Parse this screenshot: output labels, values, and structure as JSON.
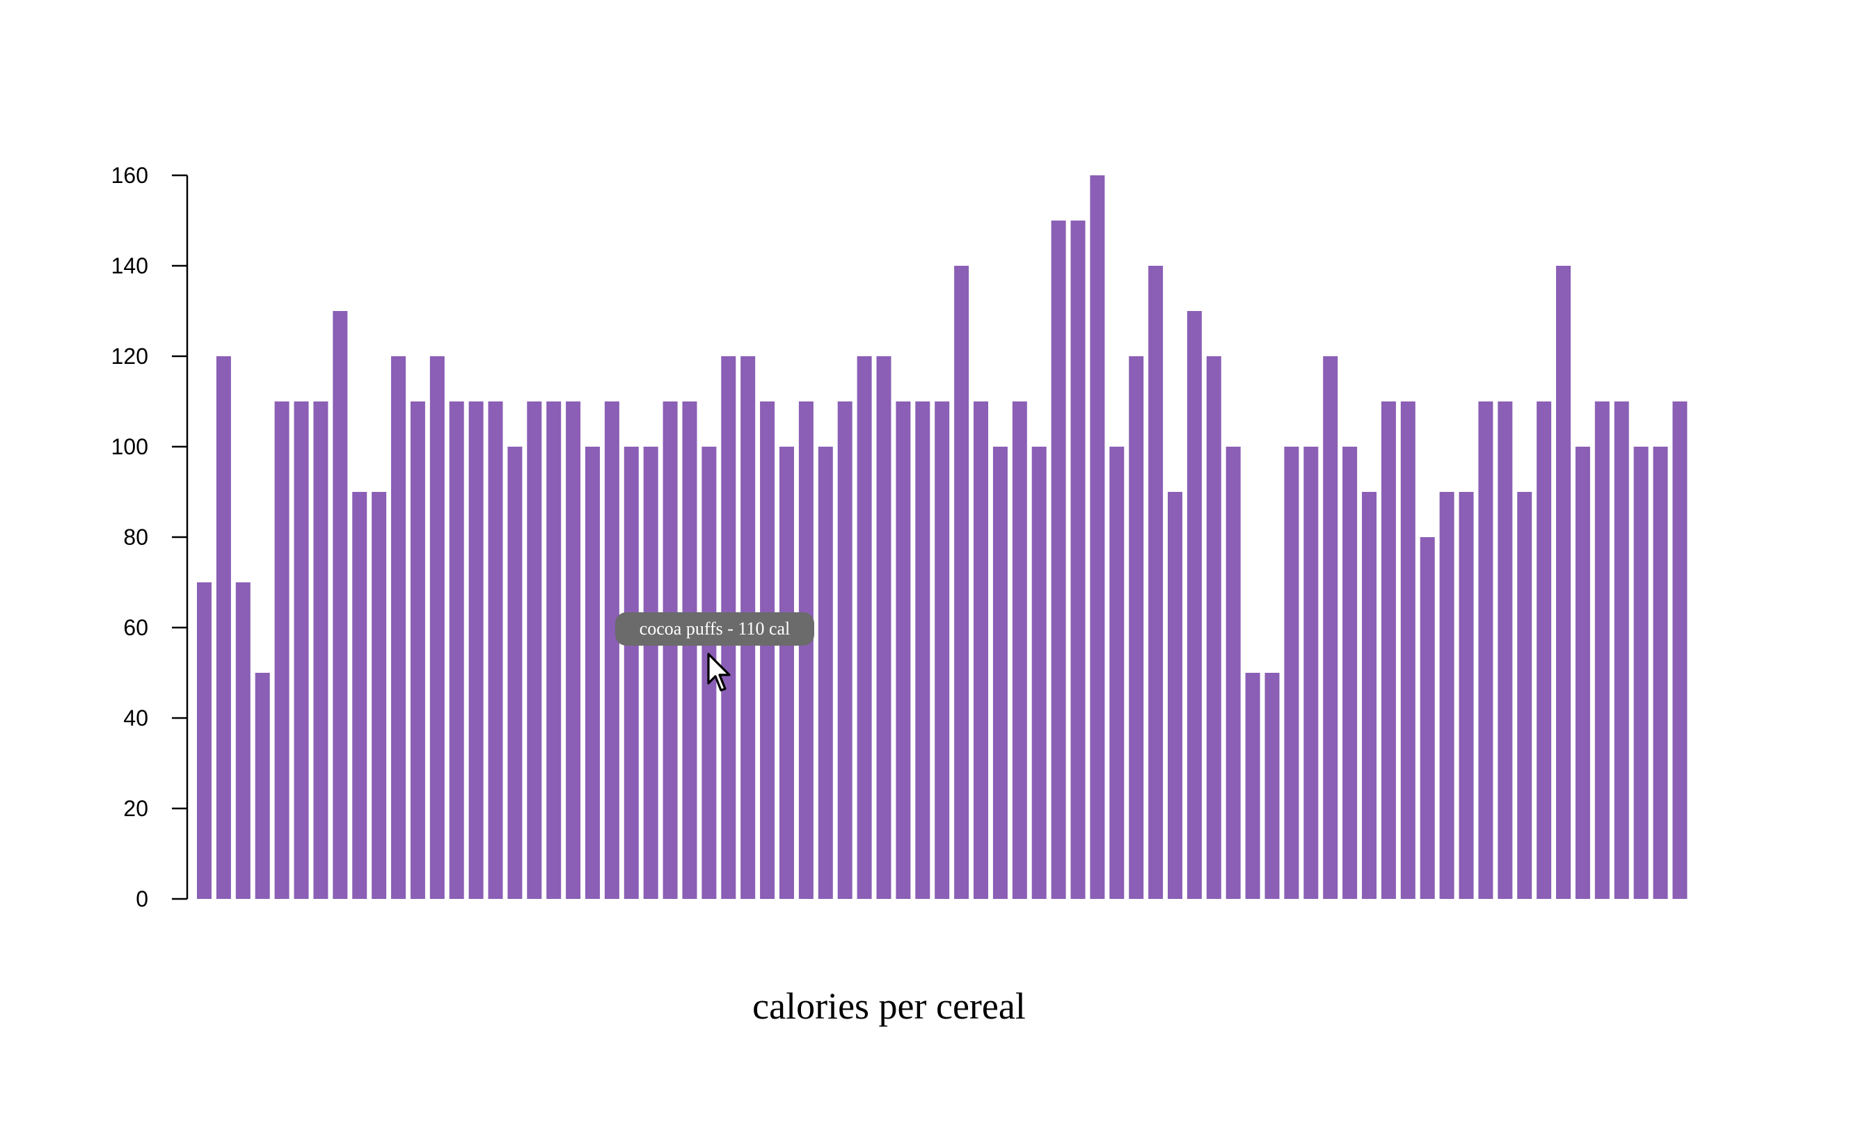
{
  "chart_data": {
    "type": "bar",
    "xlabel": "calories per cereal",
    "ylabel": "",
    "ylim": [
      0,
      160
    ],
    "yticks": [
      0,
      20,
      40,
      60,
      80,
      100,
      120,
      140,
      160
    ],
    "grid": false,
    "bar_color": "#8a5fb5",
    "values": [
      70,
      120,
      70,
      50,
      110,
      110,
      110,
      130,
      90,
      90,
      120,
      110,
      120,
      110,
      110,
      110,
      100,
      110,
      110,
      110,
      100,
      110,
      100,
      100,
      110,
      110,
      100,
      120,
      120,
      110,
      100,
      110,
      100,
      110,
      120,
      120,
      110,
      110,
      110,
      140,
      110,
      100,
      110,
      100,
      150,
      150,
      160,
      100,
      120,
      140,
      90,
      130,
      120,
      100,
      50,
      50,
      100,
      100,
      120,
      100,
      90,
      110,
      110,
      80,
      90,
      90,
      110,
      110,
      90,
      110,
      140,
      100,
      110,
      110,
      100,
      100,
      110
    ]
  },
  "tooltip": {
    "text": "cocoa puffs - 110 cal"
  }
}
